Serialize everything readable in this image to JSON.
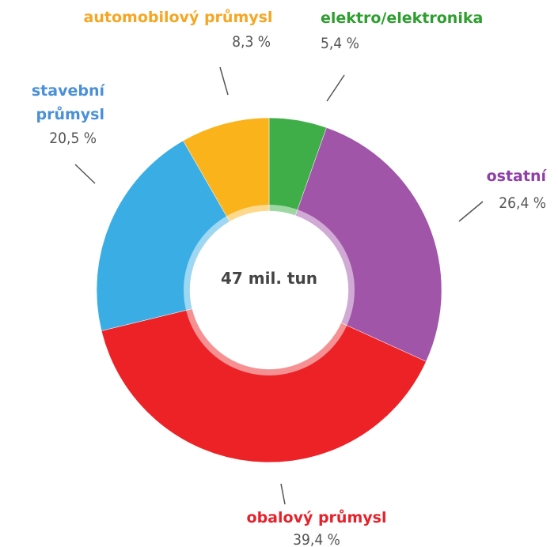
{
  "chart_data": {
    "type": "donut",
    "center_label": "47 mil. tun",
    "categories": [
      "elektro/elektronika",
      "ostatní",
      "obalový průmysl",
      "stavební průmysl",
      "automobilový průmysl"
    ],
    "values": [
      5.4,
      26.4,
      39.4,
      20.5,
      8.3
    ],
    "value_labels": [
      "5,4 %",
      "26,4 %",
      "39,4 %",
      "20,5 %",
      "8,3 %"
    ],
    "colors": [
      "#3fae49",
      "#a155a8",
      "#ec2227",
      "#3aaee4",
      "#fbb31c"
    ],
    "label_colors": [
      "#2e9e2e",
      "#8e3fa8",
      "#e8202a",
      "#4a90d9",
      "#f5a623"
    ]
  }
}
